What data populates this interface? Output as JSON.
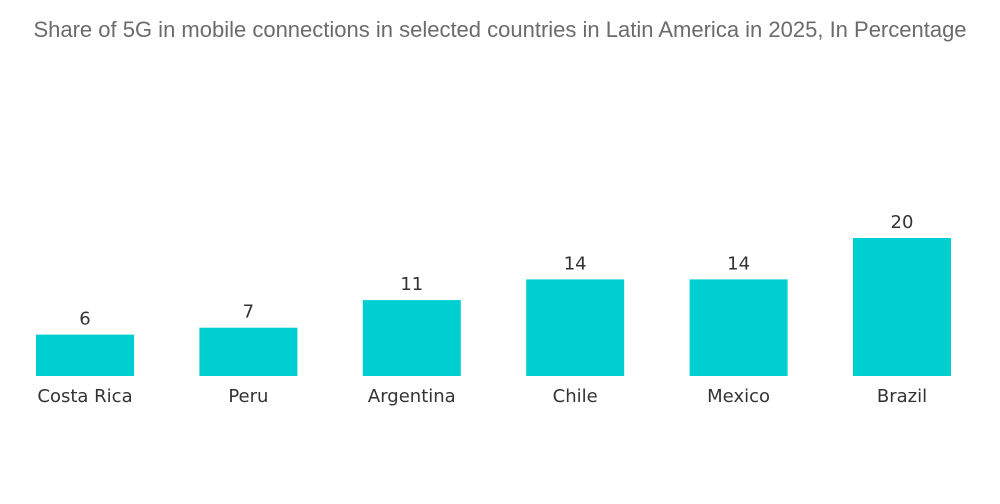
{
  "chart_data": {
    "type": "bar",
    "title": "Share of 5G in mobile connections in selected countries in Latin America in 2025, In Percentage",
    "categories": [
      "Costa Rica",
      "Peru",
      "Argentina",
      "Chile",
      "Mexico",
      "Brazil"
    ],
    "values": [
      6,
      7,
      11,
      14,
      14,
      20
    ],
    "xlabel": "",
    "ylabel": "",
    "ylim": [
      0,
      20
    ],
    "grid": false,
    "legend": "none",
    "colors": {
      "bar": "#00cfd1",
      "text": "#333333",
      "title": "#6b6b6b"
    }
  }
}
